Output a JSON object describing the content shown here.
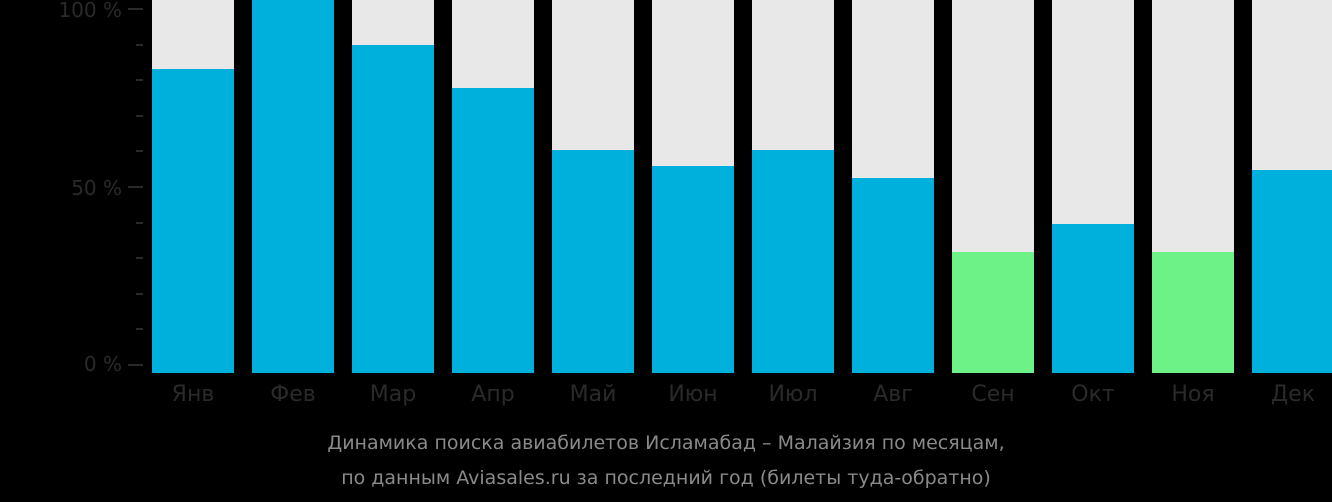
{
  "chart_data": {
    "type": "bar",
    "stacked_percent": true,
    "title": "Динамика поиска авиабилетов Исламабад – Малайзия по месяцам, по данным Aviasales.ru за последний год (билеты туда-обратно)",
    "xlabel": "",
    "ylabel": "",
    "ylim": [
      0,
      100
    ],
    "y_ticks": [
      "0 %",
      "50 %",
      "100 %"
    ],
    "categories": [
      "Янв",
      "Фев",
      "Мар",
      "Апр",
      "Май",
      "Июн",
      "Июл",
      "Авг",
      "Сен",
      "Окт",
      "Ноя",
      "Дек"
    ],
    "values": [
      81.5,
      100,
      88,
      76.4,
      59.8,
      55.5,
      59.8,
      52.3,
      32.4,
      39.9,
      32.4,
      54.4
    ],
    "highlight": [
      false,
      false,
      false,
      false,
      false,
      false,
      false,
      false,
      true,
      false,
      true,
      false
    ],
    "grid": false,
    "legend": "none"
  },
  "colors": {
    "bar": "#00b0dc",
    "highlight": "#6cf287",
    "background_bar": "#e8e8e8",
    "page": "#000000"
  },
  "axis": {
    "y0": "0 %",
    "y50": "50 %",
    "y100": "100 %"
  },
  "caption": {
    "line1": "Динамика поиска авиабилетов Исламабад – Малайзия по месяцам,",
    "line2": "по данным Aviasales.ru за последний год (билеты туда-обратно)"
  }
}
